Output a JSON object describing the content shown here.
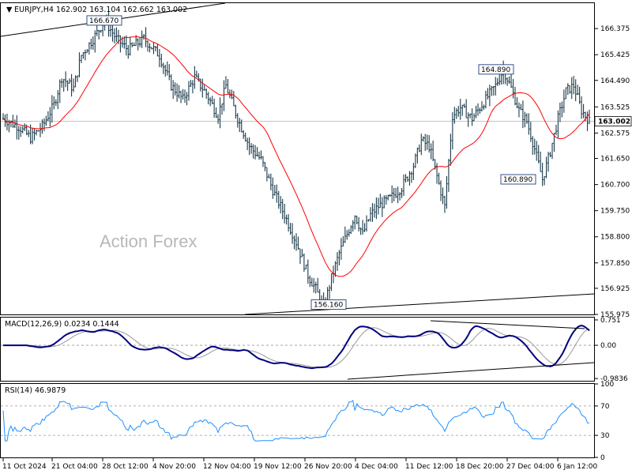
{
  "chart_data": [
    {
      "type": "candlestick",
      "header": "EURJPY,H4  162.902 163.104 162.662 163.002",
      "watermark": "Action Forex",
      "ylim": [
        155.975,
        167.3
      ],
      "yticks": [
        "166.375",
        "165.425",
        "164.490",
        "163.525",
        "162.575",
        "161.650",
        "160.700",
        "159.750",
        "158.800",
        "157.850",
        "156.925",
        "155.975"
      ],
      "current_price": "163.002",
      "annotations": [
        {
          "label": "166.670",
          "price": 166.67
        },
        {
          "label": "164.890",
          "price": 164.89
        },
        {
          "label": "160.890",
          "price": 160.89
        },
        {
          "label": "156.160",
          "price": 156.16
        }
      ],
      "moving_average_color": "#ff0000",
      "candle_color": "#1a3a4a"
    },
    {
      "type": "line",
      "header": "MACD(12,26,9) 0.0234 0.1444",
      "ylim": [
        -1.05,
        0.82
      ],
      "yticks": [
        "0.751",
        "0.00",
        "-0.9836"
      ],
      "series": [
        {
          "color": "#000080"
        },
        {
          "color": "#999999"
        }
      ]
    },
    {
      "type": "line",
      "header": "RSI(14) 46.9879",
      "ylim": [
        0,
        100
      ],
      "yticks": [
        "100",
        "70",
        "30",
        "0"
      ],
      "levels": [
        70,
        30
      ],
      "series": [
        {
          "color": "#1e90ff"
        }
      ]
    }
  ],
  "xaxis": {
    "labels": [
      "11 Oct 2024",
      "21 Oct 04:00",
      "28 Oct 12:00",
      "4 Nov 20:00",
      "12 Nov 04:00",
      "19 Nov 12:00",
      "26 Nov 20:00",
      "4 Dec 04:00",
      "11 Dec 12:00",
      "18 Dec 20:00",
      "27 Dec 04:00",
      "6 Jan 12:00"
    ]
  }
}
